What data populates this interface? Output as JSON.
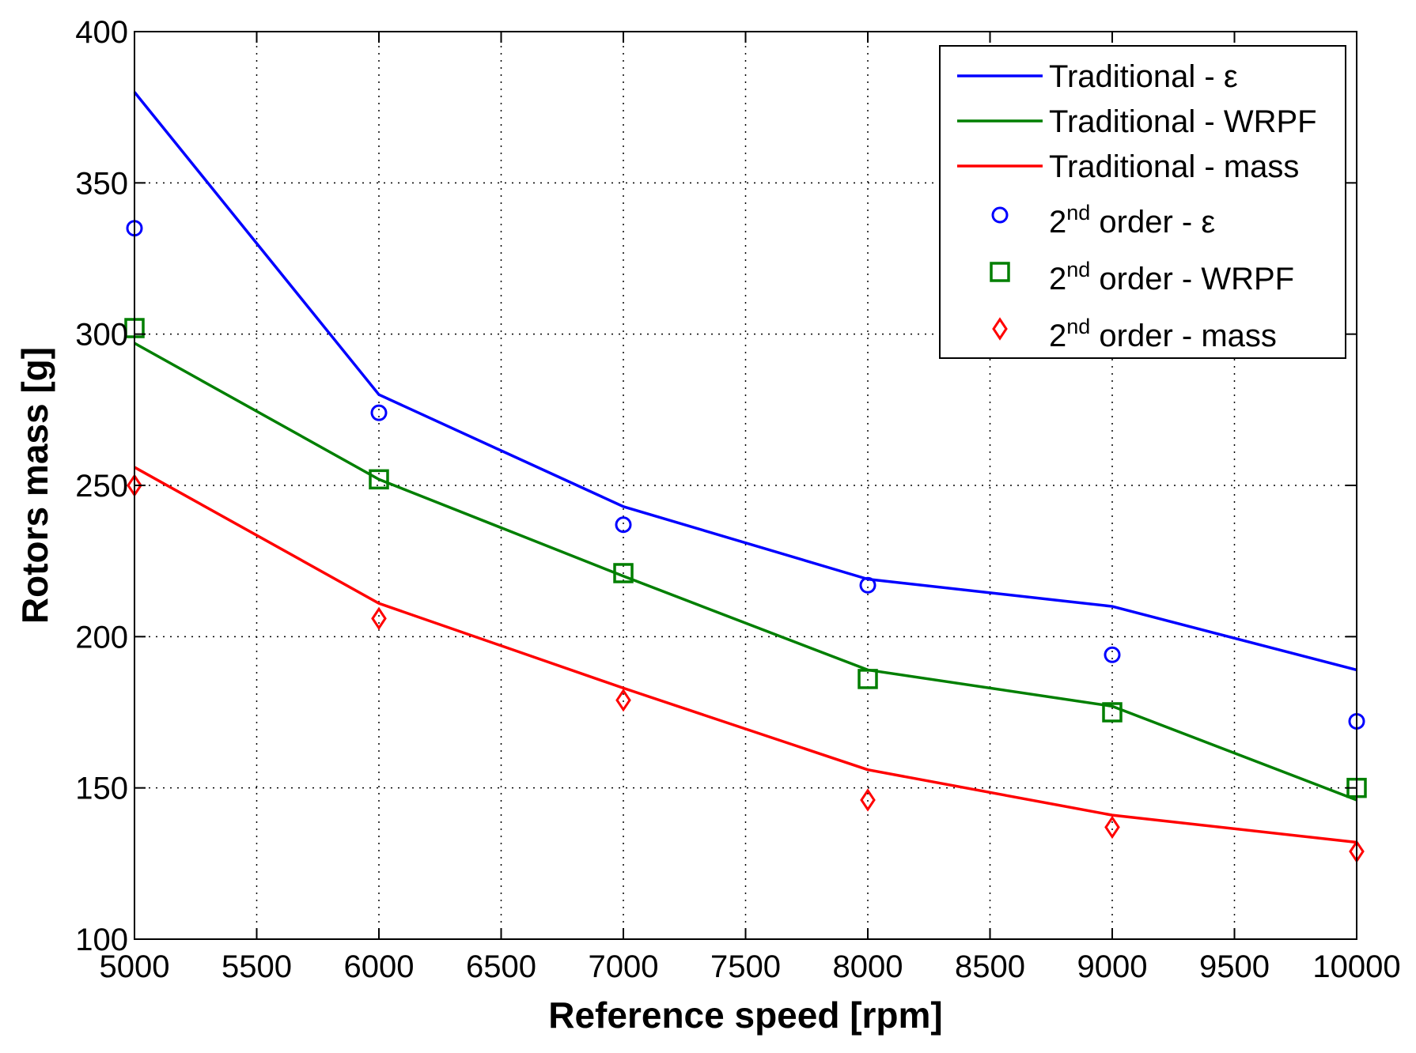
{
  "chart_data": {
    "type": "line",
    "title": "",
    "xlabel": "Reference speed [rpm]",
    "ylabel": "Rotors mass [g]",
    "xlim": [
      5000,
      10000
    ],
    "ylim": [
      100,
      400
    ],
    "grid": true,
    "legend_position": "top-right",
    "x": [
      5000,
      6000,
      7000,
      8000,
      9000,
      10000
    ],
    "xticks": [
      "5000",
      "5500",
      "6000",
      "6500",
      "7000",
      "7500",
      "8000",
      "8500",
      "9000",
      "9500",
      "10000"
    ],
    "yticks": [
      "100",
      "150",
      "200",
      "250",
      "300",
      "350",
      "400"
    ],
    "series": [
      {
        "name": "Traditional - ε",
        "style": "line",
        "color": "#0000ff",
        "values": [
          380,
          280,
          243,
          219,
          210,
          189
        ]
      },
      {
        "name": "Traditional - WRPF",
        "style": "line",
        "color": "#007f00",
        "values": [
          297,
          252,
          220,
          189,
          177,
          146
        ]
      },
      {
        "name": "Traditional - mass",
        "style": "line",
        "color": "#ff0000",
        "values": [
          256,
          211,
          183,
          156,
          141,
          132
        ]
      },
      {
        "name_base": "2",
        "name_sup": "nd",
        "name_rest": " order - ε",
        "style": "marker",
        "marker": "circle",
        "color": "#0000ff",
        "values": [
          335,
          274,
          237,
          217,
          194,
          172
        ]
      },
      {
        "name_base": "2",
        "name_sup": "nd",
        "name_rest": " order - WRPF",
        "style": "marker",
        "marker": "square",
        "color": "#007f00",
        "values": [
          302,
          252,
          221,
          186,
          175,
          150
        ]
      },
      {
        "name_base": "2",
        "name_sup": "nd",
        "name_rest": " order - mass",
        "style": "marker",
        "marker": "diamond",
        "color": "#ff0000",
        "values": [
          250,
          206,
          179,
          146,
          137,
          129
        ]
      }
    ]
  }
}
